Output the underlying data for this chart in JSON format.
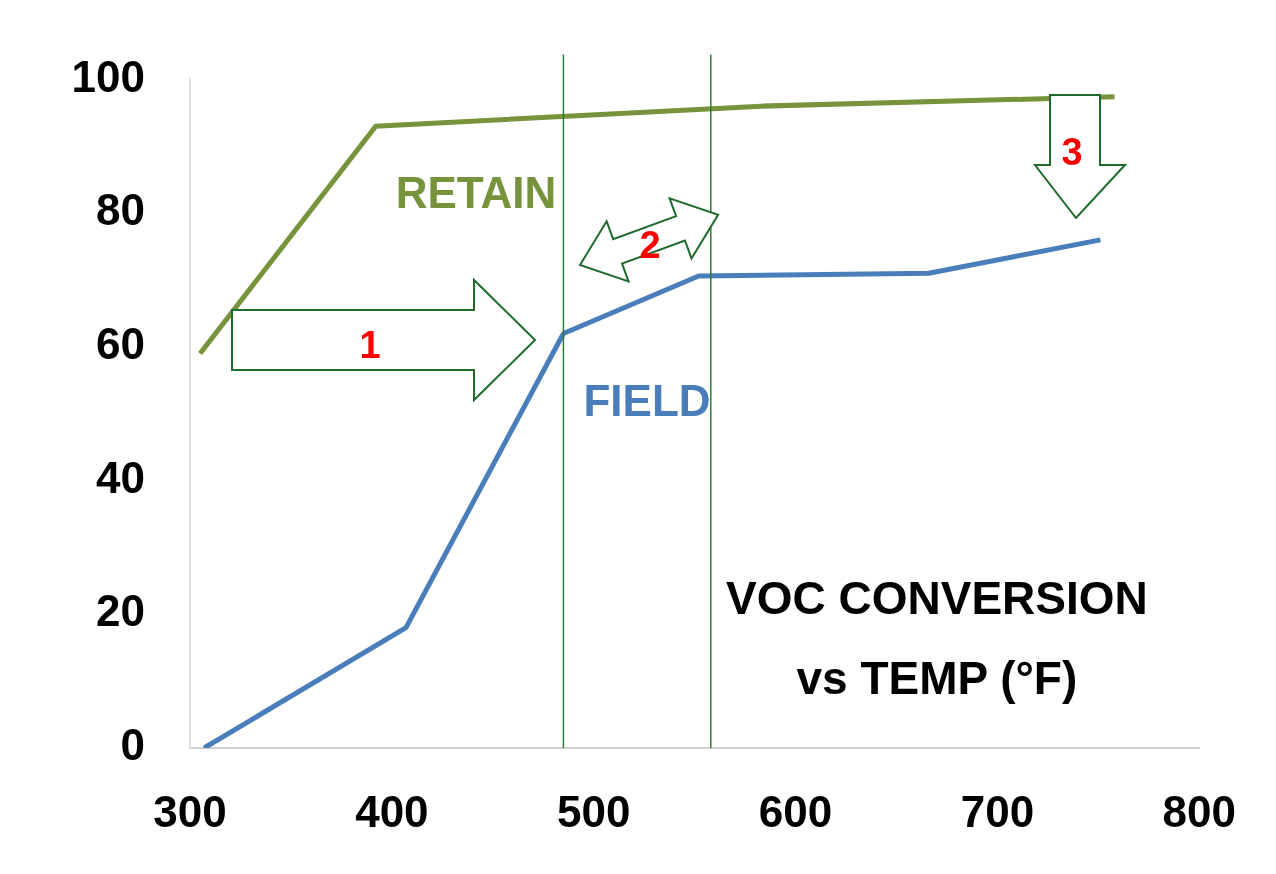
{
  "chart_data": {
    "type": "line",
    "title": "VOC CONVERSION vs TEMP (°F)",
    "series": [
      {
        "name": "RETAIN",
        "color": "#77933c",
        "x": [
          305,
          392,
          583,
          758
        ],
        "values": [
          59,
          93,
          96,
          97.4
        ]
      },
      {
        "name": "FIELD",
        "color": "#4a7ebb",
        "x": [
          307,
          407,
          485,
          552,
          666,
          751
        ],
        "values": [
          0,
          18,
          62,
          70.6,
          71,
          76
        ]
      }
    ],
    "xlim": [
      300,
      800
    ],
    "xticks": [
      300,
      400,
      500,
      600,
      700,
      800
    ],
    "ylim": [
      0,
      100
    ],
    "yticks": [
      0,
      20,
      40,
      60,
      80,
      100
    ],
    "ref_lines": [
      {
        "axis": "x",
        "value": 485,
        "color": "#2e7d32"
      },
      {
        "axis": "x",
        "value": 558,
        "color": "#2e7d32"
      }
    ],
    "annotations": [
      "1",
      "2",
      "3"
    ],
    "grid": false,
    "legend": false,
    "marker": "none",
    "line_style": "solid"
  }
}
